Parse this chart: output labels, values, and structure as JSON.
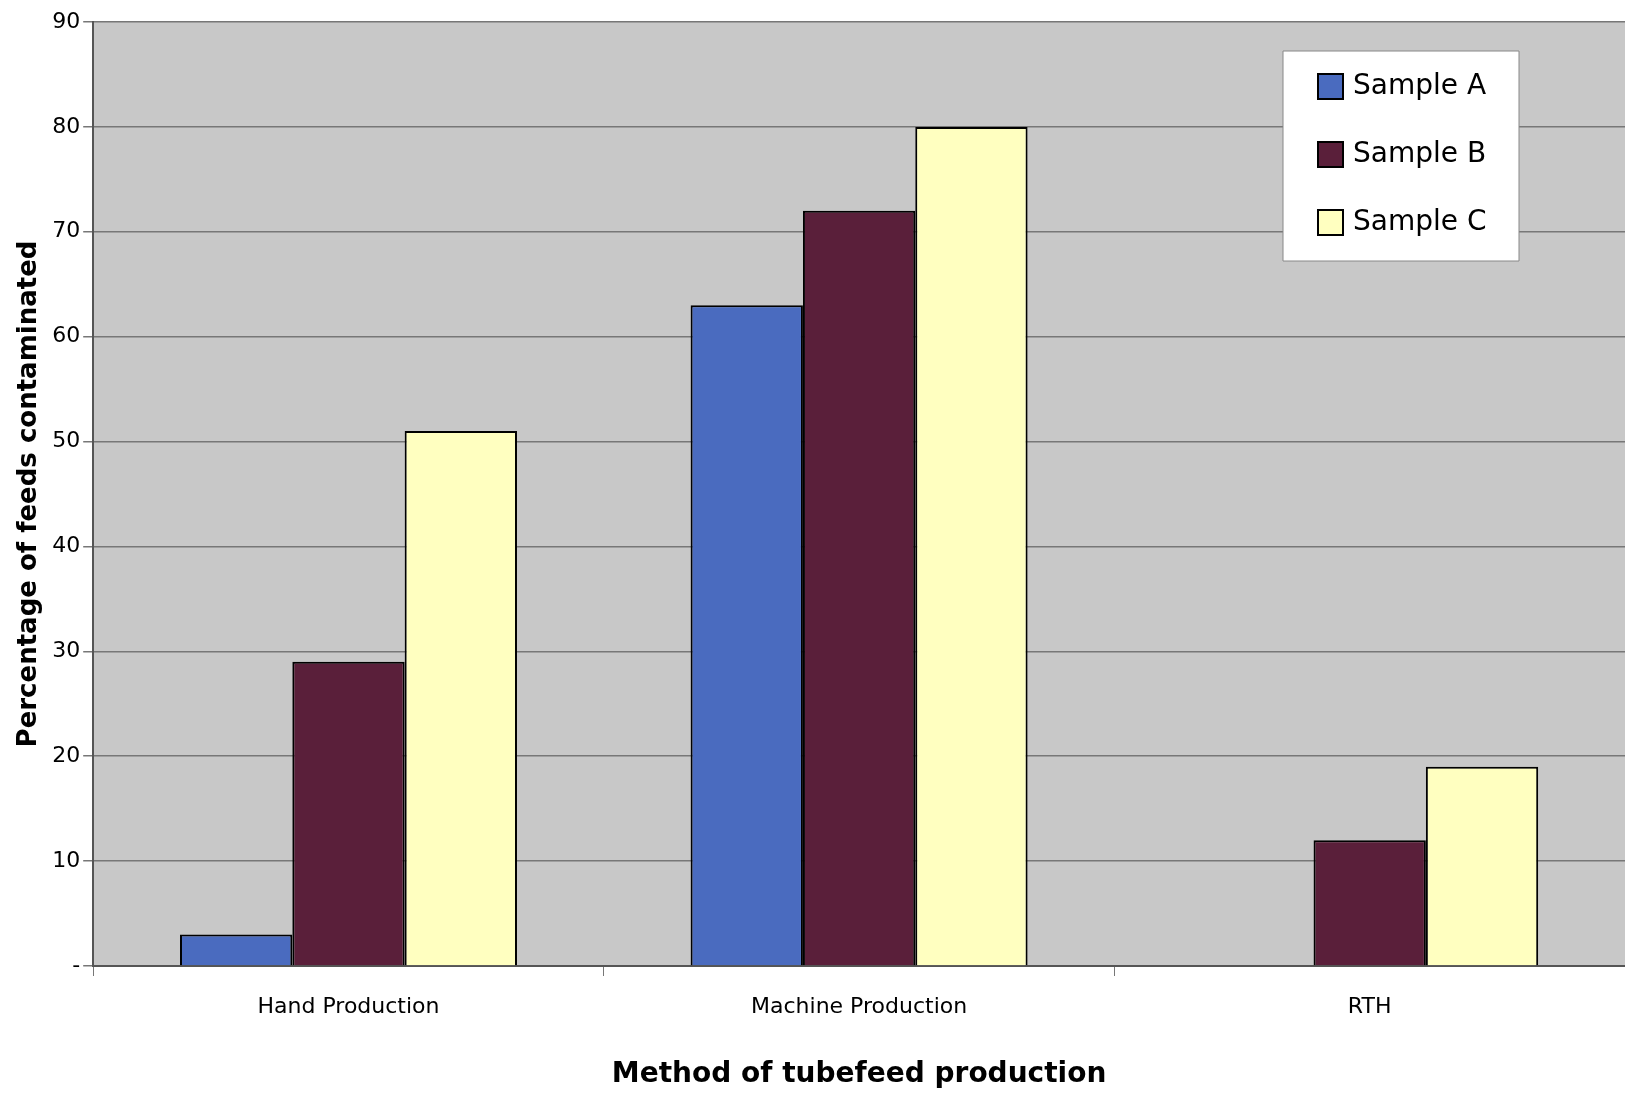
{
  "chart_data": {
    "type": "bar",
    "xlabel": "Method of tubefeed production",
    "ylabel": "Percentage of feeds contaminated",
    "categories": [
      "Hand Production",
      "Machine Production",
      "RTH"
    ],
    "series": [
      {
        "name": "Sample A",
        "color": "#4a6bbf",
        "values": [
          3,
          63,
          0
        ]
      },
      {
        "name": "Sample B",
        "color": "#5a1f3a",
        "values": [
          29,
          72,
          12
        ]
      },
      {
        "name": "Sample C",
        "color": "#ffffc0",
        "values": [
          51,
          80,
          19
        ]
      }
    ],
    "ylim": [
      0,
      90
    ],
    "yticks": [
      {
        "value": 0,
        "label": "-"
      },
      10,
      20,
      30,
      40,
      50,
      60,
      70,
      80,
      90
    ],
    "grid": "y",
    "legend": "top right"
  }
}
